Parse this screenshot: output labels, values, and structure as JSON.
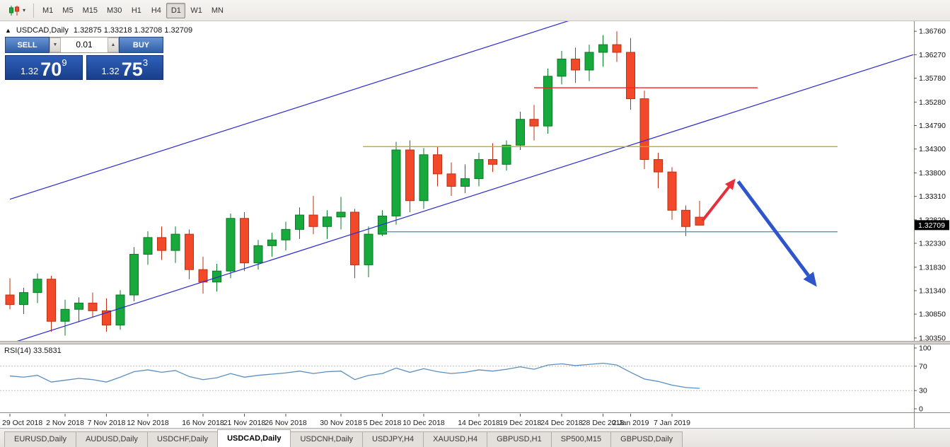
{
  "toolbar": {
    "timeframes": [
      "M1",
      "M5",
      "M15",
      "M30",
      "H1",
      "H4",
      "D1",
      "W1",
      "MN"
    ],
    "selected_timeframe": "D1"
  },
  "icons": {
    "collapse_toggle": "▲",
    "chevron_down": "▾",
    "volume_down": "▼",
    "volume_up": "▲"
  },
  "chart_header": {
    "symbol": "USDCAD,Daily",
    "ohlc": "1.32875 1.33218 1.32708 1.32709"
  },
  "trade_panel": {
    "sell_label": "SELL",
    "buy_label": "BUY",
    "volume": "0.01",
    "sell_price": {
      "big_prefix": "1.32",
      "main": "70",
      "sup": "9"
    },
    "buy_price": {
      "big_prefix": "1.32",
      "main": "75",
      "sup": "3"
    }
  },
  "price_axis": {
    "labels": [
      "1.36760",
      "1.36270",
      "1.35780",
      "1.35280",
      "1.34790",
      "1.34300",
      "1.33800",
      "1.33310",
      "1.32820",
      "1.32330",
      "1.31830",
      "1.31340",
      "1.30850",
      "1.30350"
    ],
    "current_price": "1.32709"
  },
  "date_axis": {
    "labels": [
      {
        "text": "29 Oct 2018",
        "index": 0
      },
      {
        "text": "2 Nov 2018",
        "index": 4
      },
      {
        "text": "7 Nov 2018",
        "index": 7
      },
      {
        "text": "12 Nov 2018",
        "index": 10
      },
      {
        "text": "16 Nov 2018",
        "index": 14
      },
      {
        "text": "21 Nov 2018",
        "index": 17
      },
      {
        "text": "26 Nov 2018",
        "index": 20
      },
      {
        "text": "30 Nov 2018",
        "index": 24
      },
      {
        "text": "5 Dec 2018",
        "index": 27
      },
      {
        "text": "10 Dec 2018",
        "index": 30
      },
      {
        "text": "14 Dec 2018",
        "index": 34
      },
      {
        "text": "19 Dec 2018",
        "index": 37
      },
      {
        "text": "24 Dec 2018",
        "index": 40
      },
      {
        "text": "28 Dec 2018",
        "index": 43
      },
      {
        "text": "2 Jan 2019",
        "index": 45
      },
      {
        "text": "7 Jan 2019",
        "index": 48
      }
    ]
  },
  "rsi_panel": {
    "label": "RSI(14) 33.5831",
    "axis_labels": [
      "100",
      "70",
      "30",
      "0"
    ]
  },
  "tabs": [
    "EURUSD,Daily",
    "AUDUSD,Daily",
    "USDCHF,Daily",
    "USDCAD,Daily",
    "USDCNH,Daily",
    "USDJPY,H4",
    "XAUUSD,H4",
    "GBPUSD,H1",
    "SP500,M15",
    "GBPUSD,Daily"
  ],
  "active_tab": "USDCAD,Daily",
  "colors": {
    "bull": "#17a93b",
    "bull_dark": "#0b7a27",
    "bear": "#f2492a",
    "bear_dark": "#bf3012",
    "channel": "#2a2ad0",
    "resistance": "#ff1f1f",
    "mid_level": "#b9b312",
    "support": "#3f9fc4",
    "arrow_up": "#e62e3c",
    "arrow_down": "#2f55cc",
    "rsi": "#5b8fc0",
    "badge_bg": "#000000"
  },
  "chart_data": {
    "type": "candlestick",
    "title": "USDCAD,Daily",
    "symbol": "USDCAD",
    "timeframe": "Daily",
    "ylim": [
      1.3029,
      1.3697
    ],
    "candles_columns": [
      "date",
      "open",
      "high",
      "low",
      "close"
    ],
    "candles": [
      [
        "2018-10-29",
        1.3125,
        1.316,
        1.3095,
        1.3105
      ],
      [
        "2018-10-30",
        1.3105,
        1.314,
        1.3085,
        1.313
      ],
      [
        "2018-10-31",
        1.313,
        1.317,
        1.3108,
        1.3158
      ],
      [
        "2018-11-01",
        1.3158,
        1.3165,
        1.3048,
        1.307
      ],
      [
        "2018-11-02",
        1.307,
        1.3115,
        1.304,
        1.3095
      ],
      [
        "2018-11-05",
        1.3095,
        1.312,
        1.3068,
        1.3108
      ],
      [
        "2018-11-06",
        1.3108,
        1.313,
        1.3078,
        1.3092
      ],
      [
        "2018-11-07",
        1.3092,
        1.3118,
        1.3048,
        1.3062
      ],
      [
        "2018-11-08",
        1.3062,
        1.3135,
        1.3052,
        1.3125
      ],
      [
        "2018-11-09",
        1.3125,
        1.3225,
        1.3112,
        1.321
      ],
      [
        "2018-11-12",
        1.321,
        1.3258,
        1.3188,
        1.3245
      ],
      [
        "2018-11-13",
        1.3245,
        1.3268,
        1.3198,
        1.3218
      ],
      [
        "2018-11-14",
        1.3218,
        1.3268,
        1.3192,
        1.3252
      ],
      [
        "2018-11-15",
        1.3252,
        1.3262,
        1.3158,
        1.3178
      ],
      [
        "2018-11-16",
        1.3178,
        1.3205,
        1.3128,
        1.3152
      ],
      [
        "2018-11-19",
        1.3152,
        1.319,
        1.3132,
        1.3175
      ],
      [
        "2018-11-20",
        1.3175,
        1.3295,
        1.316,
        1.3285
      ],
      [
        "2018-11-21",
        1.3285,
        1.3298,
        1.3175,
        1.3192
      ],
      [
        "2018-11-22",
        1.3192,
        1.324,
        1.3178,
        1.3228
      ],
      [
        "2018-11-23",
        1.3228,
        1.3255,
        1.3205,
        1.324
      ],
      [
        "2018-11-26",
        1.324,
        1.3278,
        1.3218,
        1.3262
      ],
      [
        "2018-11-27",
        1.3262,
        1.3308,
        1.3242,
        1.3292
      ],
      [
        "2018-11-28",
        1.3292,
        1.3332,
        1.3252,
        1.3268
      ],
      [
        "2018-11-29",
        1.3268,
        1.3302,
        1.3242,
        1.3288
      ],
      [
        "2018-11-30",
        1.3288,
        1.333,
        1.3262,
        1.3298
      ],
      [
        "2018-12-03",
        1.3298,
        1.3305,
        1.316,
        1.3188
      ],
      [
        "2018-12-04",
        1.3188,
        1.3268,
        1.3162,
        1.3252
      ],
      [
        "2018-12-05",
        1.3252,
        1.3302,
        1.3248,
        1.329
      ],
      [
        "2018-12-06",
        1.329,
        1.3445,
        1.3272,
        1.3428
      ],
      [
        "2018-12-07",
        1.3428,
        1.3448,
        1.3298,
        1.3322
      ],
      [
        "2018-12-10",
        1.3322,
        1.3432,
        1.3305,
        1.3418
      ],
      [
        "2018-12-11",
        1.3418,
        1.3435,
        1.3352,
        1.3378
      ],
      [
        "2018-12-12",
        1.3378,
        1.3402,
        1.3332,
        1.3352
      ],
      [
        "2018-12-13",
        1.3352,
        1.3398,
        1.3338,
        1.3368
      ],
      [
        "2018-12-14",
        1.3368,
        1.3422,
        1.3352,
        1.3408
      ],
      [
        "2018-12-17",
        1.3408,
        1.3442,
        1.3382,
        1.3398
      ],
      [
        "2018-12-18",
        1.3398,
        1.3448,
        1.3385,
        1.3438
      ],
      [
        "2018-12-19",
        1.3438,
        1.3508,
        1.3428,
        1.3492
      ],
      [
        "2018-12-20",
        1.3492,
        1.3522,
        1.3448,
        1.3478
      ],
      [
        "2018-12-21",
        1.3478,
        1.3598,
        1.3462,
        1.3582
      ],
      [
        "2018-12-24",
        1.3582,
        1.3635,
        1.3565,
        1.3618
      ],
      [
        "2018-12-26",
        1.3618,
        1.3642,
        1.3568,
        1.3595
      ],
      [
        "2018-12-27",
        1.3595,
        1.3648,
        1.3572,
        1.3632
      ],
      [
        "2018-12-28",
        1.3632,
        1.3668,
        1.3602,
        1.3648
      ],
      [
        "2018-12-31",
        1.3648,
        1.3676,
        1.3612,
        1.3632
      ],
      [
        "2019-01-02",
        1.3632,
        1.3662,
        1.3512,
        1.3535
      ],
      [
        "2019-01-03",
        1.3535,
        1.3552,
        1.3388,
        1.3408
      ],
      [
        "2019-01-04",
        1.3408,
        1.3422,
        1.3348,
        1.3382
      ],
      [
        "2019-01-07",
        1.3382,
        1.3392,
        1.3282,
        1.3302
      ],
      [
        "2019-01-08",
        1.3302,
        1.3312,
        1.3248,
        1.3268
      ],
      [
        "2019-01-09",
        1.32875,
        1.33218,
        1.32708,
        1.32709
      ]
    ],
    "trend_channel": [
      {
        "from": {
          "index": 0.5,
          "price": 1.3028
        },
        "to": {
          "index": 65.5,
          "price": 1.3627
        }
      },
      {
        "from": {
          "index": 0,
          "price": 1.3325
        },
        "to": {
          "index": 41.5,
          "price": 1.3707
        }
      }
    ],
    "hlines": [
      {
        "price": 1.3558,
        "from_index": 38,
        "to_index": 54.2,
        "color_key": "resistance"
      },
      {
        "price": 1.3435,
        "from_index": 25.6,
        "to_index": 60,
        "color_key": "mid_level"
      },
      {
        "price": 1.3257,
        "from_index": 27,
        "to_index": 60,
        "color_key": "support"
      }
    ],
    "arrows": [
      {
        "from": {
          "index": 50.2,
          "price": 1.328
        },
        "to": {
          "index": 52.6,
          "price": 1.3368
        },
        "color_key": "arrow_up"
      },
      {
        "from": {
          "index": 52.8,
          "price": 1.3362
        },
        "to": {
          "index": 58.5,
          "price": 1.3142
        },
        "color_key": "arrow_down"
      }
    ],
    "rsi": {
      "period": 14,
      "current": 33.5831,
      "levels": [
        70,
        30
      ],
      "range": [
        0,
        100
      ],
      "values": [
        54,
        52,
        55,
        44,
        47,
        50,
        48,
        44,
        52,
        61,
        64,
        60,
        63,
        53,
        48,
        51,
        58,
        52,
        55,
        57,
        59,
        62,
        58,
        61,
        62,
        48,
        55,
        58,
        67,
        60,
        66,
        61,
        58,
        60,
        64,
        62,
        65,
        69,
        65,
        72,
        74,
        71,
        73,
        75,
        72,
        60,
        49,
        45,
        39,
        35,
        33.5831
      ]
    }
  }
}
